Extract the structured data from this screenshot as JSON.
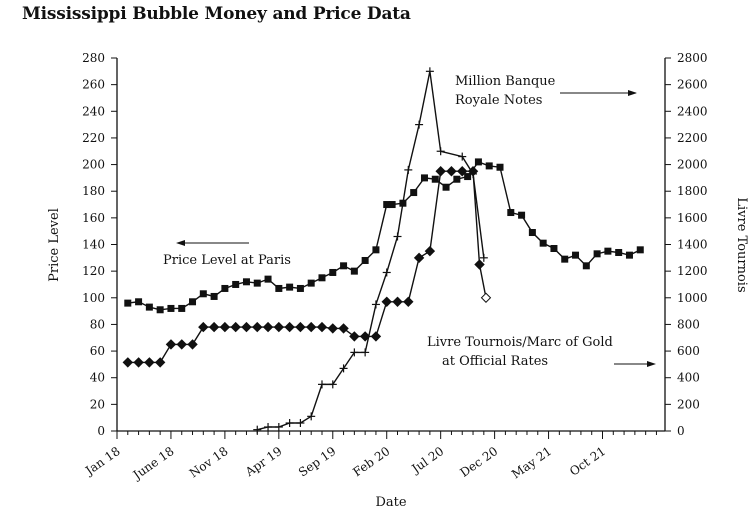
{
  "chart_data": {
    "type": "line",
    "title": "Mississippi Bubble Money and Price Data",
    "xlabel": "Date",
    "ylabel_left": "Price Level",
    "ylabel_right": "Livre Tournois",
    "ylim_left": [
      0,
      280
    ],
    "ylim_right": [
      0,
      2800
    ],
    "yticks_left": [
      0,
      20,
      40,
      60,
      80,
      100,
      120,
      140,
      160,
      180,
      200,
      220,
      240,
      260,
      280
    ],
    "yticks_right": [
      0,
      200,
      400,
      600,
      800,
      1000,
      1200,
      1400,
      1600,
      1800,
      2000,
      2200,
      2400,
      2600,
      2800
    ],
    "x_range_months": [
      0,
      50
    ],
    "x_ticks": [
      {
        "label": "Jan 18",
        "month": 0
      },
      {
        "label": "June 18",
        "month": 5
      },
      {
        "label": "Nov 18",
        "month": 10
      },
      {
        "label": "Apr 19",
        "month": 15
      },
      {
        "label": "Sep 19",
        "month": 20
      },
      {
        "label": "Feb 20",
        "month": 25
      },
      {
        "label": "Jul 20",
        "month": 30
      },
      {
        "label": "Dec 20",
        "month": 35
      },
      {
        "label": "May 21",
        "month": 40
      },
      {
        "label": "Oct 21",
        "month": 45
      }
    ],
    "series": [
      {
        "name": "Price Level at Paris",
        "axis": "left",
        "marker": "square",
        "x": [
          1,
          2,
          3,
          4,
          5,
          6,
          7,
          8,
          9,
          10,
          11,
          12,
          13,
          14,
          15,
          16,
          17,
          18,
          19,
          20,
          21,
          22,
          23,
          24,
          25,
          25.5,
          26.5,
          27.5,
          28.5,
          29.5,
          30.5,
          31.5,
          32.5,
          33.5,
          34.5,
          35.5,
          36.5,
          37.5,
          38.5,
          39.5,
          40.5,
          41.5,
          42.5,
          43.5,
          44.5,
          45.5,
          46.5,
          47.5,
          48.5
        ],
        "values": [
          96,
          97,
          93,
          91,
          92,
          92,
          97,
          103,
          101,
          107,
          110,
          112,
          111,
          114,
          107,
          108,
          107,
          111,
          115,
          119,
          124,
          120,
          128,
          136,
          170,
          170,
          171,
          179,
          190,
          189,
          183,
          189,
          191,
          202,
          199,
          198,
          164,
          162,
          149,
          141,
          137,
          129,
          132,
          124,
          133,
          135,
          134,
          132,
          136
        ]
      },
      {
        "name": "Livre Tournois/Marc of Gold at Official Rates",
        "axis": "right",
        "marker": "diamond",
        "x": [
          1,
          2,
          3,
          4,
          5,
          6,
          7,
          8,
          9,
          10,
          11,
          12,
          13,
          14,
          15,
          16,
          17,
          18,
          19,
          20,
          21,
          22,
          23,
          24,
          25,
          26,
          27,
          28,
          29,
          30,
          31,
          32,
          33,
          33.6,
          34.2
        ],
        "values": [
          515,
          515,
          515,
          515,
          650,
          650,
          650,
          780,
          780,
          780,
          780,
          780,
          780,
          780,
          780,
          780,
          780,
          780,
          780,
          770,
          770,
          710,
          710,
          710,
          970,
          970,
          970,
          1300,
          1350,
          1950,
          1950,
          1950,
          1950,
          1250,
          1000
        ]
      },
      {
        "name": "Million Banque Royale Notes",
        "axis": "right",
        "marker": "plus",
        "x": [
          13,
          14,
          15,
          16,
          17,
          18,
          19,
          20,
          21,
          22,
          23,
          24,
          25,
          26,
          27,
          28,
          29,
          30,
          32,
          33,
          34
        ],
        "values": [
          10,
          30,
          30,
          60,
          60,
          110,
          350,
          350,
          470,
          590,
          590,
          950,
          1190,
          1460,
          1960,
          2300,
          2700,
          2100,
          2060,
          1930,
          1300
        ]
      }
    ],
    "annotations": {
      "price_level": "Price Level at Paris",
      "notes_line1": "Million Banque",
      "notes_line2": "Royale Notes",
      "gold_line1": "Livre Tournois/Marc of Gold",
      "gold_line2": "at Official Rates"
    }
  }
}
